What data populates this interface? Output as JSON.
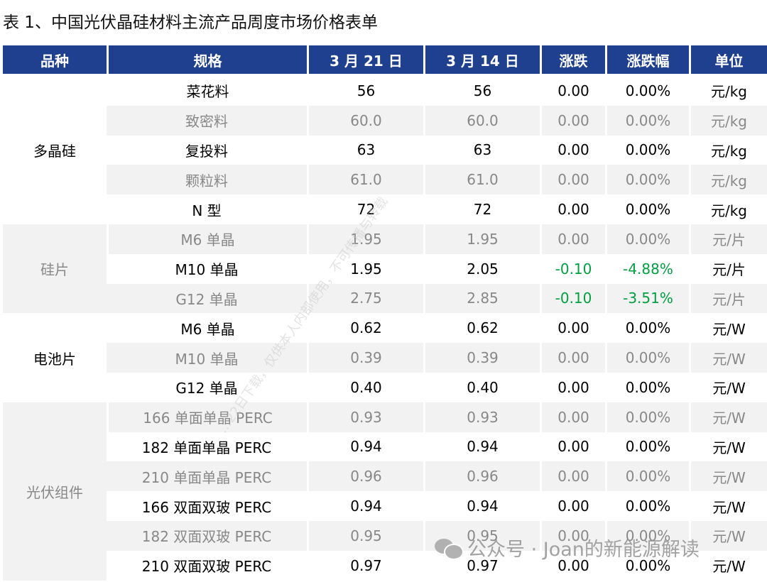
{
  "title": "表 1、中国光伏晶硅材料主流产品周度市场价格表单",
  "headers": [
    "品种",
    "规格",
    "3 月 21 日",
    "3 月 14 日",
    "涨跌",
    "涨跌幅",
    "单位"
  ],
  "groups": [
    {
      "name": "多晶硅",
      "shade": "white",
      "rows": [
        {
          "spec": "菜花料",
          "cur": "56",
          "prev": "56",
          "chg": "0.00",
          "pct": "0.00%",
          "unit": "元/kg",
          "shade": "white",
          "neg": false
        },
        {
          "spec": "致密料",
          "cur": "60.0",
          "prev": "60.0",
          "chg": "0.00",
          "pct": "0.00%",
          "unit": "元/kg",
          "shade": "gray",
          "neg": false
        },
        {
          "spec": "复投料",
          "cur": "63",
          "prev": "63",
          "chg": "0.00",
          "pct": "0.00%",
          "unit": "元/kg",
          "shade": "white",
          "neg": false
        },
        {
          "spec": "颗粒料",
          "cur": "61.0",
          "prev": "61.0",
          "chg": "0.00",
          "pct": "0.00%",
          "unit": "元/kg",
          "shade": "gray",
          "neg": false
        },
        {
          "spec": "N 型",
          "cur": "72",
          "prev": "72",
          "chg": "0.00",
          "pct": "0.00%",
          "unit": "元/kg",
          "shade": "white",
          "neg": false
        }
      ]
    },
    {
      "name": "硅片",
      "shade": "gray",
      "rows": [
        {
          "spec": "M6 单晶",
          "cur": "1.95",
          "prev": "1.95",
          "chg": "0.00",
          "pct": "0.00%",
          "unit": "元/片",
          "shade": "gray",
          "neg": false
        },
        {
          "spec": "M10 单晶",
          "cur": "1.95",
          "prev": "2.05",
          "chg": "-0.10",
          "pct": "-4.88%",
          "unit": "元/片",
          "shade": "white",
          "neg": true
        },
        {
          "spec": "G12 单晶",
          "cur": "2.75",
          "prev": "2.85",
          "chg": "-0.10",
          "pct": "-3.51%",
          "unit": "元/片",
          "shade": "gray",
          "neg": true
        }
      ]
    },
    {
      "name": "电池片",
      "shade": "white",
      "rows": [
        {
          "spec": "M6 单晶",
          "cur": "0.62",
          "prev": "0.62",
          "chg": "0.00",
          "pct": "0.00%",
          "unit": "元/W",
          "shade": "white",
          "neg": false
        },
        {
          "spec": "M10 单晶",
          "cur": "0.39",
          "prev": "0.39",
          "chg": "0.00",
          "pct": "0.00%",
          "unit": "元/W",
          "shade": "gray",
          "neg": false
        },
        {
          "spec": "G12 单晶",
          "cur": "0.40",
          "prev": "0.40",
          "chg": "0.00",
          "pct": "0.00%",
          "unit": "元/W",
          "shade": "white",
          "neg": false
        }
      ]
    },
    {
      "name": "光伏组件",
      "shade": "gray",
      "rows": [
        {
          "spec": "166 单面单晶 PERC",
          "cur": "0.93",
          "prev": "0.93",
          "chg": "0.00",
          "pct": "0.00%",
          "unit": "元/W",
          "shade": "gray",
          "neg": false
        },
        {
          "spec": "182 单面单晶 PERC",
          "cur": "0.94",
          "prev": "0.94",
          "chg": "0.00",
          "pct": "0.00%",
          "unit": "元/W",
          "shade": "white",
          "neg": false
        },
        {
          "spec": "210 单面单晶 PERC",
          "cur": "0.96",
          "prev": "0.96",
          "chg": "0.00",
          "pct": "0.00%",
          "unit": "元/W",
          "shade": "gray",
          "neg": false
        },
        {
          "spec": "166 双面双玻 PERC",
          "cur": "0.94",
          "prev": "0.94",
          "chg": "0.00",
          "pct": "0.00%",
          "unit": "元/W",
          "shade": "white",
          "neg": false
        },
        {
          "spec": "182 双面双玻 PERC",
          "cur": "0.95",
          "prev": "0.95",
          "chg": "0.00",
          "pct": "0.00%",
          "unit": "元/W",
          "shade": "gray",
          "neg": false
        },
        {
          "spec": "210 双面双玻 PERC",
          "cur": "0.97",
          "prev": "0.97",
          "chg": "0.00",
          "pct": "0.00%",
          "unit": "元/W",
          "shade": "white",
          "neg": false
        }
      ]
    }
  ],
  "watermark": "公众号 · Joan的新能源解读",
  "diagonal_mark": "…22日下载，仅供本人内部使用，不可传播与转载"
}
